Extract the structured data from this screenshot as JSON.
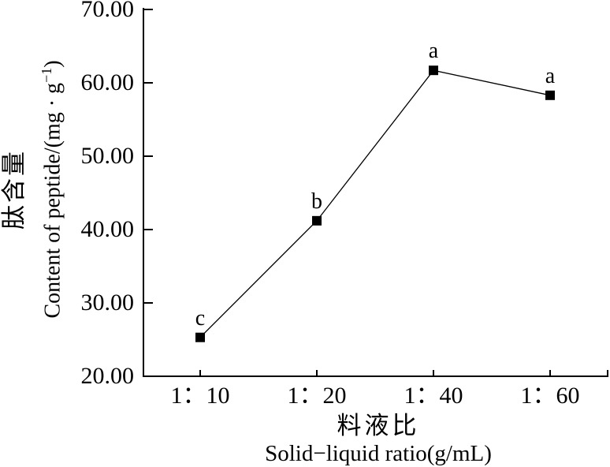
{
  "chart_data": {
    "type": "line",
    "categories": [
      "1：10",
      "1：20",
      "1：40",
      "1：60"
    ],
    "values": [
      25.3,
      41.2,
      61.7,
      58.3
    ],
    "point_labels": [
      "c",
      "b",
      "a",
      "a"
    ],
    "series_name": "content-of-peptide",
    "marker": "filled-square",
    "line_color": "#000000",
    "marker_color": "#000000",
    "background_color": "#ffffff",
    "ylim": [
      20,
      70
    ],
    "ytick_labels": [
      "20.00",
      "30.00",
      "40.00",
      "50.00",
      "60.00",
      "70.00"
    ],
    "grid": "off",
    "legend": "none",
    "xlabel_zh": "料液比",
    "xlabel_en": "Solid−liquid ratio(g/mL)",
    "ylabel_zh": "肽含量",
    "ylabel_en_prefix": "Content of peptide/(mg · g",
    "ylabel_en_sup": "−1",
    "ylabel_en_suffix": ")"
  }
}
